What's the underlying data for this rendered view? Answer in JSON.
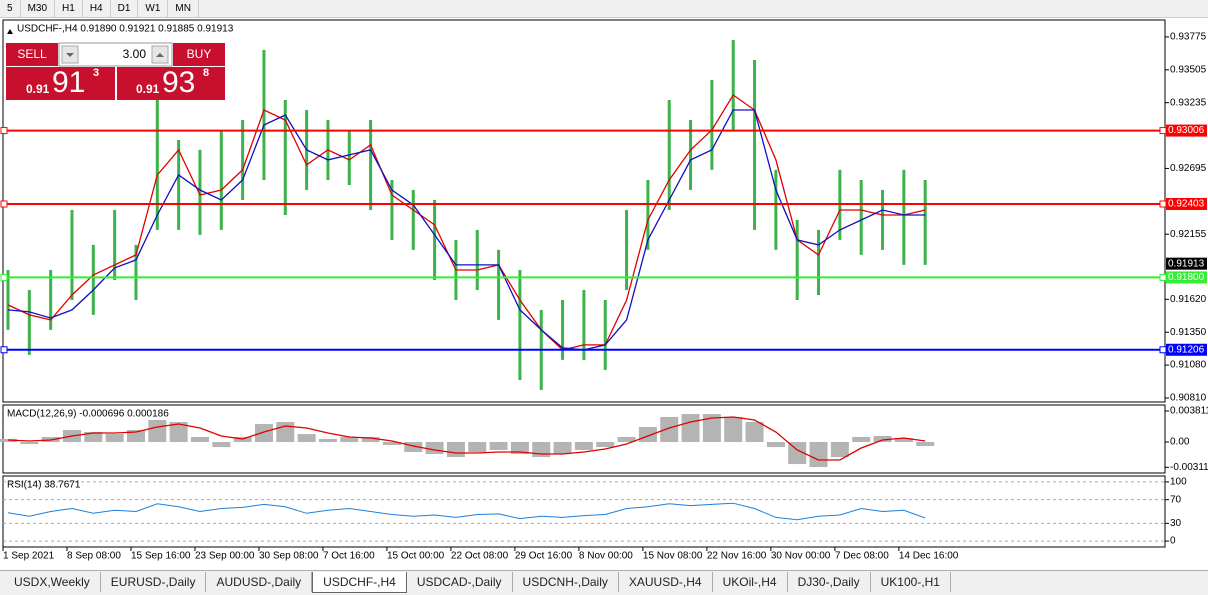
{
  "toolbar": [
    "5",
    "M30",
    "H1",
    "H4",
    "D1",
    "W1",
    "MN"
  ],
  "trade_panel": {
    "sell": "SELL",
    "buy": "BUY",
    "volume": "3.00",
    "sell_price": {
      "prefix": "0.91",
      "big": "91",
      "small": "3"
    },
    "buy_price": {
      "prefix": "0.91",
      "big": "93",
      "small": "8"
    }
  },
  "tabs": [
    "USDX,Weekly",
    "EURUSD-,Daily",
    "AUDUSD-,Daily",
    "USDCHF-,H4",
    "USDCAD-,Daily",
    "USDCNH-,Daily",
    "XAUUSD-,H4",
    "UKOil-,H4",
    "DJ30-,Daily",
    "UK100-,H1"
  ],
  "active_tab": 3,
  "chart_data": [
    {
      "type": "ohlc",
      "title": "USDCHF-,H4  0.91890 0.91921 0.91885 0.91913",
      "categories": [
        "1 Sep 2021",
        null,
        null,
        "8 Sep 08:00",
        null,
        null,
        "15 Sep 16:00",
        null,
        null,
        "23 Sep 00:00",
        null,
        null,
        "30 Sep 08:00",
        null,
        null,
        "7 Oct 16:00",
        null,
        null,
        "15 Oct 00:00",
        null,
        null,
        "22 Oct 08:00",
        null,
        null,
        "29 Oct 16:00",
        null,
        null,
        "8 Nov 00:00",
        null,
        null,
        "15 Nov 08:00",
        null,
        null,
        "22 Nov 16:00",
        null,
        null,
        "30 Nov 00:00",
        null,
        null,
        "7 Dec 08:00",
        null,
        null,
        "14 Dec 16:00",
        null
      ],
      "high": [
        0.91861,
        0.91697,
        0.91861,
        0.92354,
        0.92067,
        0.92354,
        0.92067,
        0.93257,
        0.92929,
        0.92847,
        0.93011,
        0.93093,
        0.93668,
        0.93257,
        0.93175,
        0.93093,
        0.93011,
        0.93093,
        0.926,
        0.92518,
        0.92436,
        0.92108,
        0.9219,
        0.92026,
        0.91861,
        0.91533,
        0.91615,
        0.91697,
        0.91615,
        0.92354,
        0.926,
        0.93257,
        0.93093,
        0.93421,
        0.9375,
        0.93586,
        0.92683,
        0.92272,
        0.9219,
        0.92683,
        0.926,
        0.92518,
        0.92683,
        0.926
      ],
      "low": [
        0.91369,
        0.91164,
        0.91369,
        0.91615,
        0.91492,
        0.91779,
        0.91615,
        0.9219,
        0.9219,
        0.92149,
        0.9219,
        0.92436,
        0.926,
        0.92313,
        0.92518,
        0.926,
        0.92559,
        0.92354,
        0.92108,
        0.92026,
        0.91779,
        0.91615,
        0.91697,
        0.91451,
        0.90958,
        0.90876,
        0.91123,
        0.91123,
        0.91041,
        0.91697,
        0.92026,
        0.92354,
        0.92518,
        0.92683,
        0.93011,
        0.9219,
        0.92026,
        0.91615,
        0.91656,
        0.92108,
        0.91985,
        0.92026,
        0.91903,
        0.91903
      ],
      "color": "#3cb34a",
      "lines": [
        {
          "color": "#e00000",
          "values": [
            0.91574,
            0.91492,
            0.91451,
            0.91656,
            0.9182,
            0.91903,
            0.91985,
            0.92641,
            0.92847,
            0.92477,
            0.92518,
            0.92683,
            0.93175,
            0.93093,
            0.92724,
            0.92847,
            0.92765,
            0.92888,
            0.92477,
            0.92354,
            0.92231,
            0.91861,
            0.91861,
            0.91903,
            0.91615,
            0.91369,
            0.91205,
            0.91246,
            0.91246,
            0.91615,
            0.92272,
            0.926,
            0.92847,
            0.93011,
            0.93298,
            0.93175,
            0.92765,
            0.92108,
            0.91985,
            0.92354,
            0.92354,
            0.92313,
            0.92313,
            0.92354
          ]
        },
        {
          "color": "#1010c0",
          "values": [
            0.91533,
            0.91517,
            0.91467,
            0.91533,
            0.91697,
            0.91878,
            0.91944,
            0.92313,
            0.92641,
            0.92518,
            0.92436,
            0.926,
            0.93052,
            0.93134,
            0.92847,
            0.92765,
            0.92806,
            0.92847,
            0.92518,
            0.92395,
            0.92149,
            0.91903,
            0.91903,
            0.91903,
            0.91533,
            0.91369,
            0.91221,
            0.91205,
            0.91246,
            0.91451,
            0.92108,
            0.92436,
            0.92765,
            0.92847,
            0.93175,
            0.93175,
            0.92518,
            0.92108,
            0.92067,
            0.9219,
            0.92272,
            0.92354,
            0.92313,
            0.92313
          ]
        }
      ],
      "levels": [
        {
          "value": 0.93006,
          "color": "#ff0000"
        },
        {
          "value": 0.92403,
          "color": "#ff0000"
        },
        {
          "value": 0.918,
          "label": "0.91800",
          "color": "#33ee33"
        },
        {
          "value": 0.91206,
          "color": "#0000ff"
        }
      ],
      "last_price": 0.91913,
      "ylim": [
        0.90777,
        0.93914
      ],
      "yticks": [
        0.93775,
        0.93505,
        0.93235,
        0.92695,
        0.92155,
        {
          "value": 0.9162,
          "label": "0.91620"
        },
        {
          "value": 0.9135,
          "label": "0.91350"
        },
        {
          "value": 0.9108,
          "label": "0.91080"
        },
        {
          "value": 0.9081,
          "label": "0.90810"
        }
      ],
      "grid": false
    },
    {
      "type": "bar",
      "title": "MACD(12,26,9) -0.000696 0.000186",
      "values": [
        0.00037,
        -0.00025,
        0.00062,
        0.00148,
        0.00123,
        0.00098,
        0.00148,
        0.00271,
        0.00246,
        0.00062,
        -0.00062,
        0.00062,
        0.00221,
        0.00246,
        0.00098,
        0.00037,
        0.00062,
        0.00062,
        -0.00037,
        -0.00123,
        -0.00148,
        -0.00185,
        -0.00123,
        -0.00098,
        -0.00148,
        -0.00185,
        -0.00148,
        -0.00098,
        -0.00062,
        0.00062,
        0.00185,
        0.00308,
        0.00344,
        0.00344,
        0.00308,
        0.00246,
        -0.00062,
        -0.00271,
        -0.00308,
        -0.00185,
        0.00062,
        0.00074,
        0.00049,
        -0.00049
      ],
      "color": "#b4b4b4",
      "lines": [
        {
          "color": "#e00000",
          "values": [
            0.00025,
            0.00012,
            0.00025,
            0.00074,
            0.00111,
            0.00111,
            0.00123,
            0.00185,
            0.00221,
            0.00172,
            0.00074,
            0.00037,
            0.00123,
            0.00197,
            0.00172,
            0.00111,
            0.00062,
            0.00049,
            0.00012,
            -0.00049,
            -0.00098,
            -0.00135,
            -0.00135,
            -0.00123,
            -0.00123,
            -0.00148,
            -0.00148,
            -0.00123,
            -0.00086,
            -0.00025,
            0.00074,
            0.00172,
            0.00246,
            0.00295,
            0.00308,
            0.00271,
            0.00123,
            -0.00098,
            -0.00221,
            -0.00221,
            -0.00074,
            0.00025,
            0.00049,
            0.00012
          ]
        }
      ],
      "ylim": [
        -0.00381,
        0.00455
      ],
      "yticks": [
        0.003811,
        {
          "value": 0,
          "label": "0.00"
        },
        -0.003115
      ],
      "grid": false
    },
    {
      "type": "line",
      "title": "RSI(14) 38.7671",
      "values": [
        48,
        42,
        50,
        55,
        47,
        52,
        50,
        63,
        58,
        50,
        55,
        57,
        62,
        58,
        47,
        52,
        55,
        50,
        45,
        42,
        44,
        40,
        45,
        46,
        38,
        42,
        40,
        43,
        45,
        55,
        58,
        63,
        60,
        62,
        64,
        55,
        40,
        36,
        42,
        44,
        55,
        50,
        52,
        39
      ],
      "color": "#1e7fdc",
      "ylim": [
        -10,
        110
      ],
      "yticks": [
        100,
        70,
        30,
        0
      ],
      "grid": true
    }
  ]
}
